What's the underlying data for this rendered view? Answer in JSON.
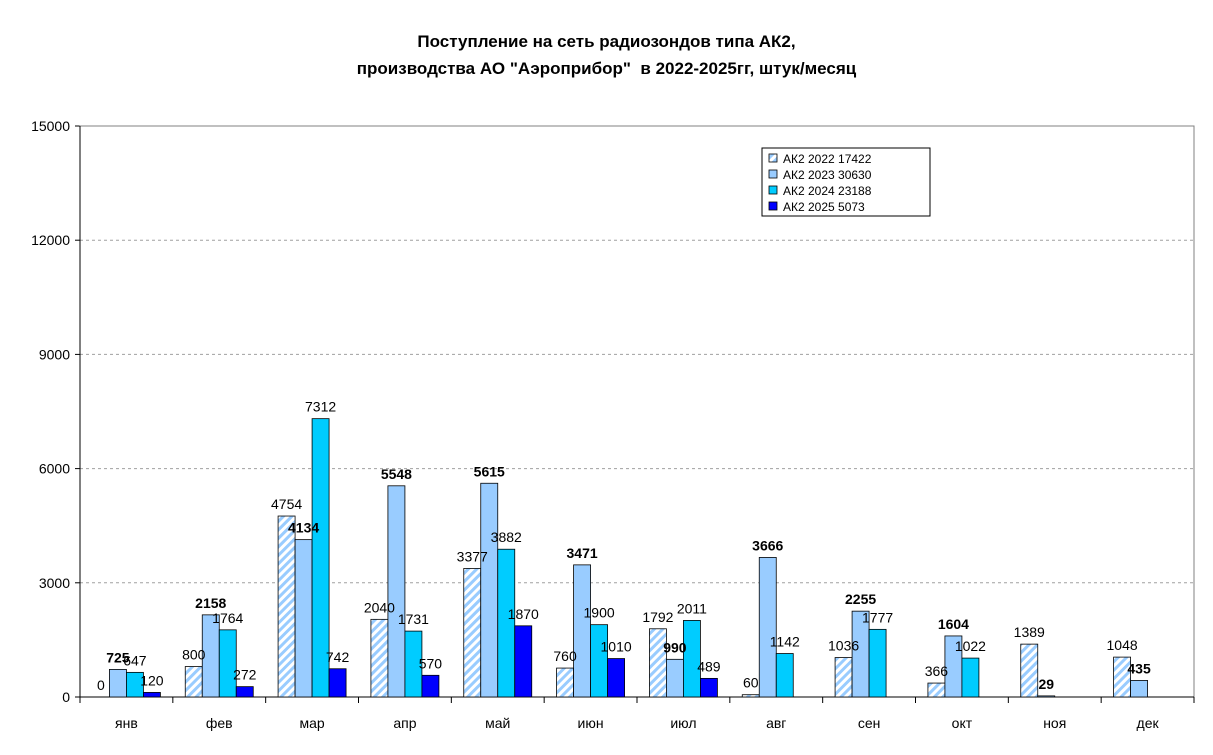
{
  "chart_data": {
    "type": "bar",
    "title": [
      "Поступление на сеть радиозондов типа АК2,",
      "производства АО \"Аэроприбор\"  в 2022-2025гг, штук/месяц"
    ],
    "xlabel": "",
    "ylabel": "",
    "ylim": [
      0,
      15000
    ],
    "yticks": [
      "0",
      "3000",
      "6000",
      "9000",
      "12000",
      "15000"
    ],
    "grid": true,
    "legend_position": "top-right",
    "categories": [
      "янв",
      "фев",
      "мар",
      "апр",
      "май",
      "июн",
      "июл",
      "авг",
      "сен",
      "окт",
      "ноя",
      "дек"
    ],
    "series": [
      {
        "name": "АК2 2022 17422",
        "color": "#ffffff",
        "pattern": "hatch",
        "values": [
          0,
          800,
          4754,
          2040,
          3377,
          760,
          1792,
          60,
          1036,
          366,
          1389,
          1048
        ],
        "labels": [
          "0",
          "800",
          "4754",
          "2040",
          "3377",
          "760",
          "1792",
          "60",
          "1036",
          "366",
          "1389",
          "1048"
        ]
      },
      {
        "name": "АК2 2023 30630",
        "color": "#99ccff",
        "values": [
          725,
          2158,
          4134,
          5548,
          5615,
          3471,
          990,
          3666,
          2255,
          1604,
          29,
          435
        ],
        "labels": [
          "725",
          "2158",
          "4134",
          "5548",
          "5615",
          "3471",
          "990",
          "3666",
          "2255",
          "1604",
          "29",
          "435"
        ],
        "bold_labels": true
      },
      {
        "name": "АК2 2024 23188",
        "color": "#00ccff",
        "values": [
          647,
          1764,
          7312,
          1731,
          3882,
          1900,
          2011,
          1142,
          1777,
          1022,
          null,
          null
        ],
        "labels": [
          "647",
          "1764",
          "7312",
          "1731",
          "3882",
          "1900",
          "2011",
          "1142",
          "1777",
          "1022",
          "",
          ""
        ]
      },
      {
        "name": "АК2 2025 5073",
        "color": "#0000ff",
        "values": [
          120,
          272,
          742,
          570,
          1870,
          1010,
          489,
          null,
          null,
          null,
          null,
          null
        ],
        "labels": [
          "120",
          "272",
          "742",
          "570",
          "1870",
          "1010",
          "489",
          "",
          "",
          "",
          "",
          ""
        ]
      }
    ]
  }
}
